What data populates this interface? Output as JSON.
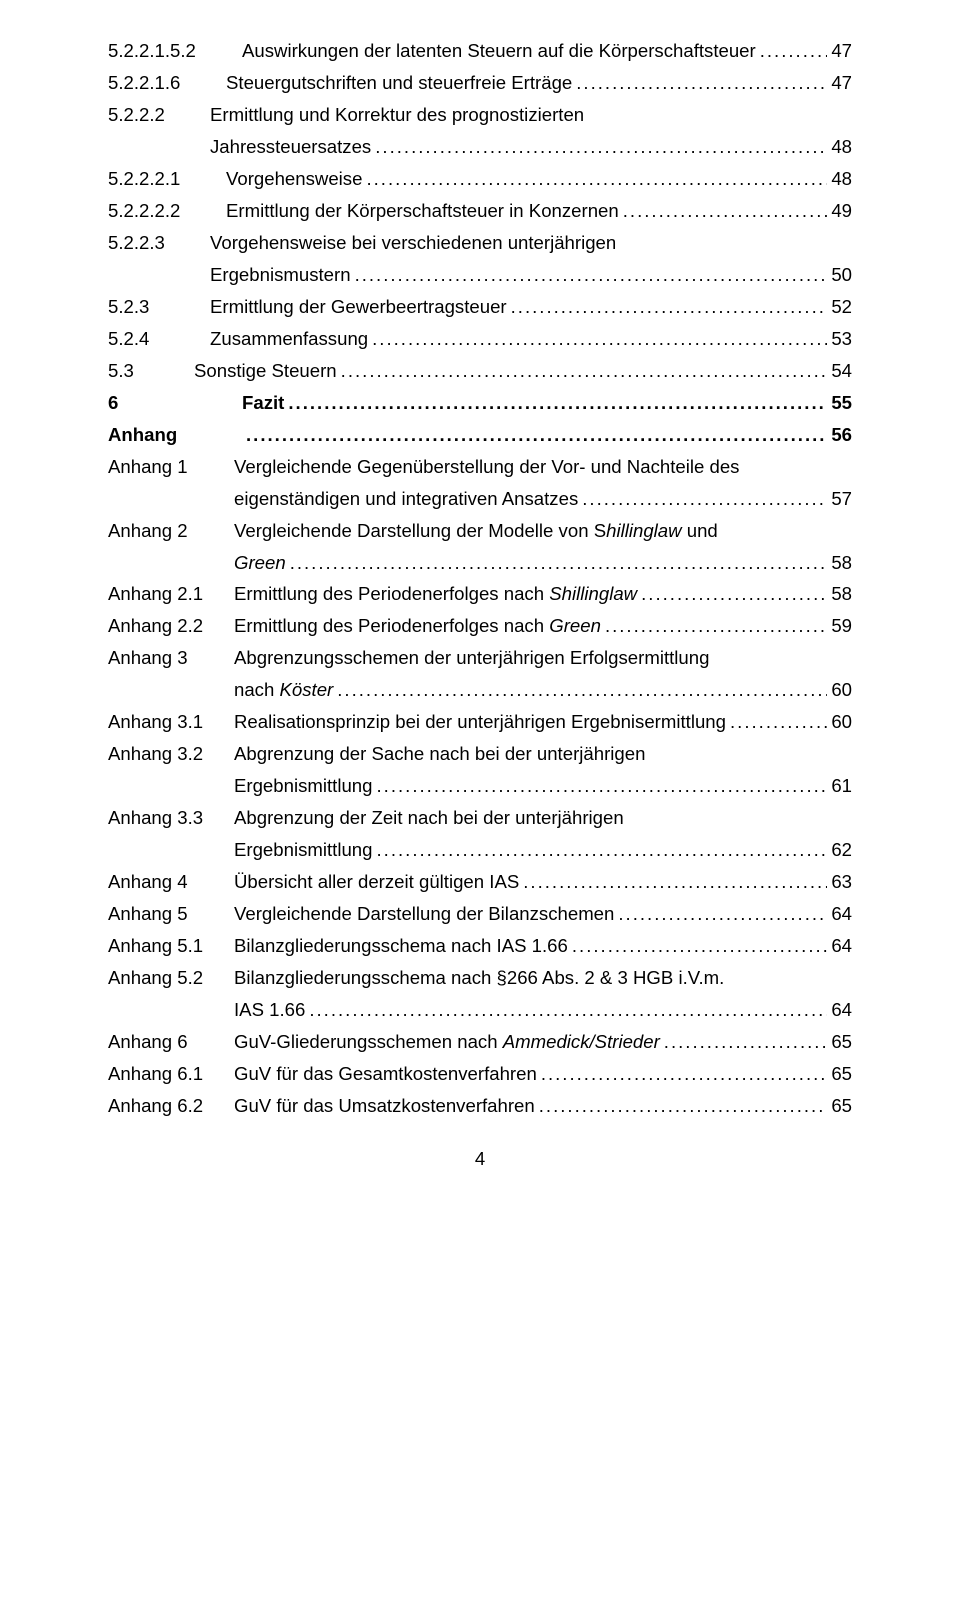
{
  "items": [
    {
      "num": "5.2.2.1.5.2",
      "title": "Auswirkungen der latenten Steuern auf die Körperschaftsteuer",
      "page": "47",
      "lvl": "a",
      "wrap": false
    },
    {
      "num": "5.2.2.1.6",
      "title": "Steuergutschriften und steuerfreie Erträge",
      "page": "47",
      "lvl": "b",
      "wrap": false
    },
    {
      "num": "5.2.2.2",
      "title": "Ermittlung und Korrektur des prognostizierten",
      "title2": "Jahressteuersatzes",
      "page": "48",
      "lvl": "c",
      "wrap": true
    },
    {
      "num": "5.2.2.2.1",
      "title": "Vorgehensweise",
      "page": "48",
      "lvl": "b",
      "wrap": false
    },
    {
      "num": "5.2.2.2.2",
      "title": "Ermittlung der Körperschaftsteuer in Konzernen",
      "page": "49",
      "lvl": "b",
      "wrap": false
    },
    {
      "num": "5.2.2.3",
      "title": "Vorgehensweise bei verschiedenen unterjährigen",
      "title2": "Ergebnismustern",
      "page": "50",
      "lvl": "c",
      "wrap": true
    },
    {
      "num": "5.2.3",
      "title": "Ermittlung der Gewerbeertragsteuer",
      "page": "52",
      "lvl": "c",
      "wrap": false
    },
    {
      "num": "5.2.4",
      "title": "Zusammenfassung",
      "page": "53",
      "lvl": "c",
      "wrap": false
    },
    {
      "num": "5.3",
      "title": "Sonstige Steuern",
      "page": "54",
      "lvl": "d",
      "wrap": false
    },
    {
      "num": "6",
      "title": "Fazit",
      "page": "55",
      "lvl": "e",
      "bold": true,
      "numwidth": "128px"
    },
    {
      "num": "Anhang",
      "title": "",
      "page": "56",
      "lvl": "e",
      "bold": true,
      "numwidth": "128px",
      "nodots_title": true
    },
    {
      "num": "Anhang 1",
      "title": "Vergleichende Gegenüberstellung der Vor- und Nachteile des",
      "title2": "eigenständigen und integrativen Ansatzes",
      "page": "57",
      "lvl": "f",
      "wrap": true
    },
    {
      "num": "Anhang 2",
      "title_parts": [
        {
          "t": "Vergleichende Darstellung der Modelle von S"
        },
        {
          "t": "hillinglaw",
          "italic": true
        },
        {
          "t": " und"
        }
      ],
      "title2_parts": [
        {
          "t": "Green",
          "italic": true
        }
      ],
      "page": "58",
      "lvl": "f",
      "wrap": true
    },
    {
      "num": "Anhang 2.1",
      "title_parts": [
        {
          "t": "Ermittlung des Periodenerfolges nach "
        },
        {
          "t": "Shillinglaw",
          "italic": true
        }
      ],
      "page": "58",
      "lvl": "f",
      "wrap": false
    },
    {
      "num": "Anhang 2.2",
      "title_parts": [
        {
          "t": "Ermittlung des Periodenerfolges nach "
        },
        {
          "t": "Green",
          "italic": true
        }
      ],
      "page": "59",
      "lvl": "f",
      "wrap": false
    },
    {
      "num": "Anhang 3",
      "title": "Abgrenzungsschemen der unterjährigen Erfolgsermittlung",
      "title2_parts": [
        {
          "t": "nach "
        },
        {
          "t": "Köster",
          "italic": true
        }
      ],
      "page": "60",
      "lvl": "f",
      "wrap": true
    },
    {
      "num": "Anhang 3.1",
      "title": "Realisationsprinzip bei der unterjährigen Ergebnisermittlung",
      "page": "60",
      "lvl": "f",
      "wrap": false
    },
    {
      "num": "Anhang 3.2",
      "title": "Abgrenzung der Sache nach bei der unterjährigen",
      "title2": "Ergebnismittlung",
      "page": "61",
      "lvl": "f",
      "wrap": true
    },
    {
      "num": "Anhang 3.3",
      "title": "Abgrenzung der Zeit nach bei der unterjährigen",
      "title2": "Ergebnismittlung",
      "page": "62",
      "lvl": "f",
      "wrap": true
    },
    {
      "num": "Anhang 4",
      "title": "Übersicht aller derzeit gültigen IAS",
      "page": "63",
      "lvl": "f",
      "wrap": false
    },
    {
      "num": "Anhang 5",
      "title": "Vergleichende Darstellung der Bilanzschemen",
      "page": "64",
      "lvl": "f",
      "wrap": false
    },
    {
      "num": "Anhang 5.1",
      "title": "Bilanzgliederungsschema nach IAS 1.66",
      "page": "64",
      "lvl": "f",
      "wrap": false
    },
    {
      "num": "Anhang 5.2",
      "title": "Bilanzgliederungsschema nach §266 Abs. 2 & 3 HGB i.V.m.",
      "title2": "IAS 1.66",
      "page": "64",
      "lvl": "f",
      "wrap": true
    },
    {
      "num": "Anhang 6",
      "title_parts": [
        {
          "t": "GuV-Gliederungsschemen nach "
        },
        {
          "t": "Ammedick/Strieder",
          "italic": true
        }
      ],
      "page": "65",
      "lvl": "f",
      "wrap": false
    },
    {
      "num": "Anhang 6.1",
      "title": "GuV für das Gesamtkostenverfahren",
      "page": "65",
      "lvl": "f",
      "wrap": false
    },
    {
      "num": "Anhang 6.2",
      "title": "GuV für das Umsatzkostenverfahren",
      "page": "65",
      "lvl": "f",
      "wrap": false
    }
  ],
  "page_number": "4"
}
